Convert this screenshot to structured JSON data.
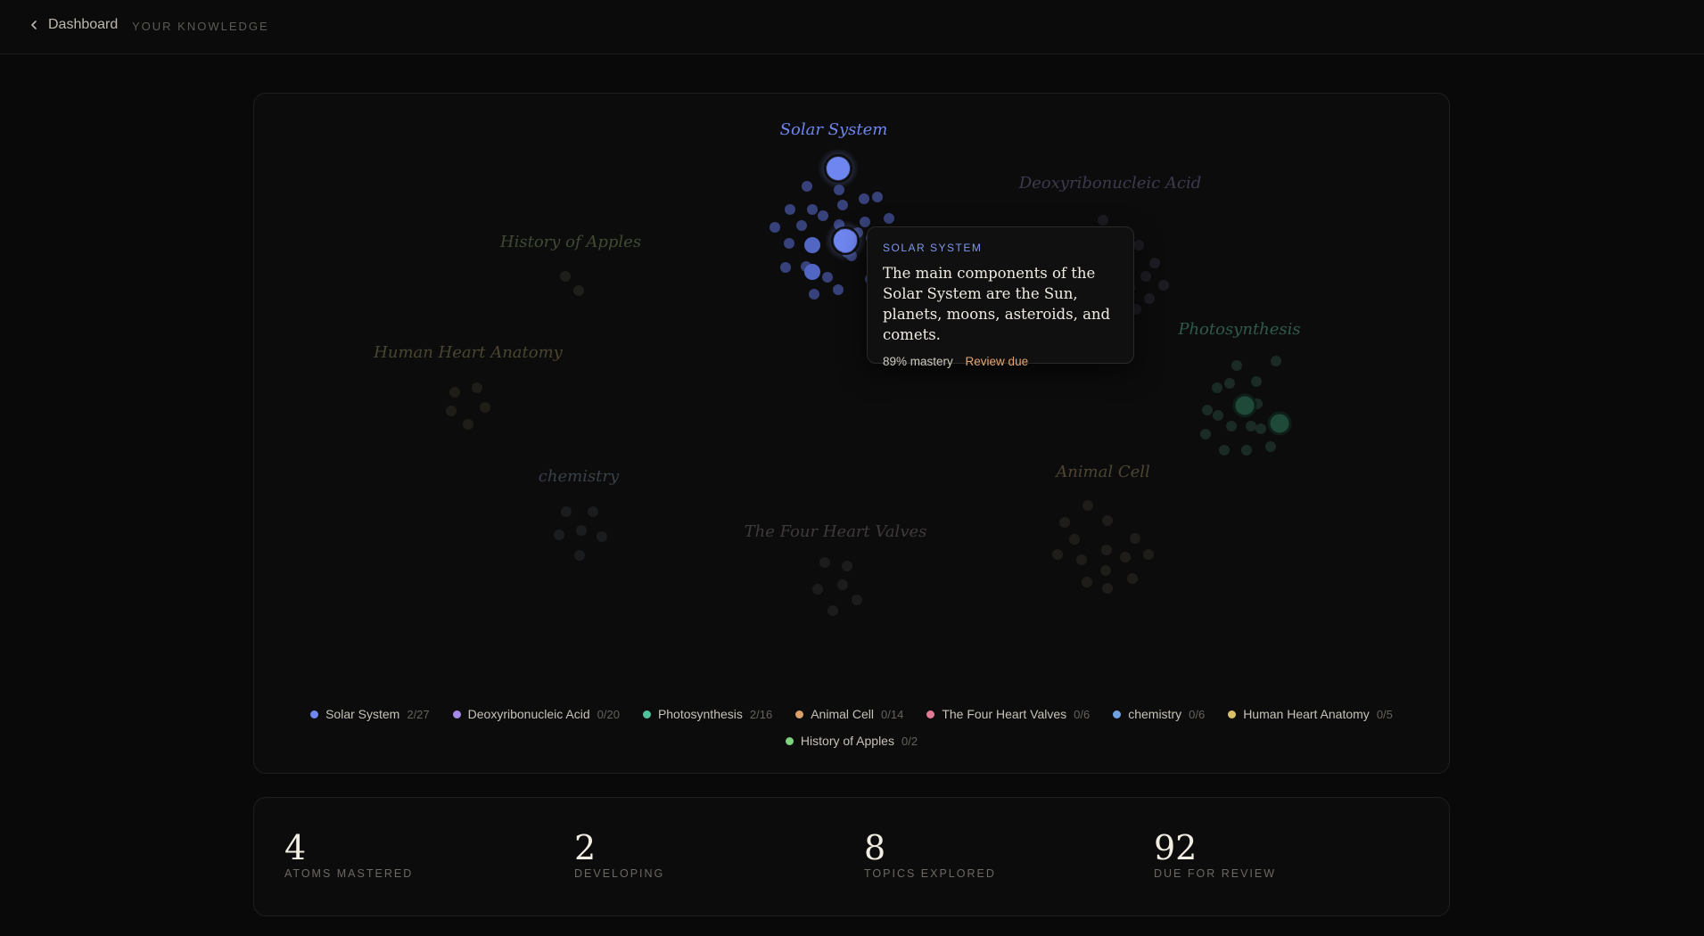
{
  "header": {
    "back_label": "Dashboard",
    "crumb": "YOUR KNOWLEDGE"
  },
  "colors": {
    "solar": "#6f86f0",
    "dna": "#a48be8",
    "photo": "#4fc29c",
    "animal": "#d9a06a",
    "valves": "#e07a94",
    "chemistry": "#6fa2e0",
    "heart": "#d6bf68",
    "apples": "#7ed37e"
  },
  "clusters": [
    {
      "id": "solar",
      "label": "Solar System"
    },
    {
      "id": "dna",
      "label": "Deoxyribonucleic Acid"
    },
    {
      "id": "apples",
      "label": "History of Apples"
    },
    {
      "id": "photo",
      "label": "Photosynthesis"
    },
    {
      "id": "heart",
      "label": "Human Heart Anatomy"
    },
    {
      "id": "chemistry",
      "label": "chemistry"
    },
    {
      "id": "animal",
      "label": "Animal Cell"
    },
    {
      "id": "valves",
      "label": "The Four Heart Valves"
    }
  ],
  "tooltip": {
    "topic": "SOLAR SYSTEM",
    "text": "The main components of the Solar System are the Sun, planets, moons, asteroids, and comets.",
    "mastery": "89% mastery",
    "status": "Review due"
  },
  "legend": [
    {
      "name": "Solar System",
      "count": "2/27",
      "color": "#6f86f0"
    },
    {
      "name": "Deoxyribonucleic Acid",
      "count": "0/20",
      "color": "#a48be8"
    },
    {
      "name": "Photosynthesis",
      "count": "2/16",
      "color": "#4fc29c"
    },
    {
      "name": "Animal Cell",
      "count": "0/14",
      "color": "#d9a06a"
    },
    {
      "name": "The Four Heart Valves",
      "count": "0/6",
      "color": "#e07a94"
    },
    {
      "name": "chemistry",
      "count": "0/6",
      "color": "#6fa2e0"
    },
    {
      "name": "Human Heart Anatomy",
      "count": "0/5",
      "color": "#d6bf68"
    },
    {
      "name": "History of Apples",
      "count": "0/2",
      "color": "#7ed37e"
    }
  ],
  "stats": [
    {
      "value": "4",
      "label": "ATOMS MASTERED"
    },
    {
      "value": "2",
      "label": "DEVELOPING"
    },
    {
      "value": "8",
      "label": "TOPICS EXPLORED"
    },
    {
      "value": "92",
      "label": "DUE FOR REVIEW"
    }
  ]
}
